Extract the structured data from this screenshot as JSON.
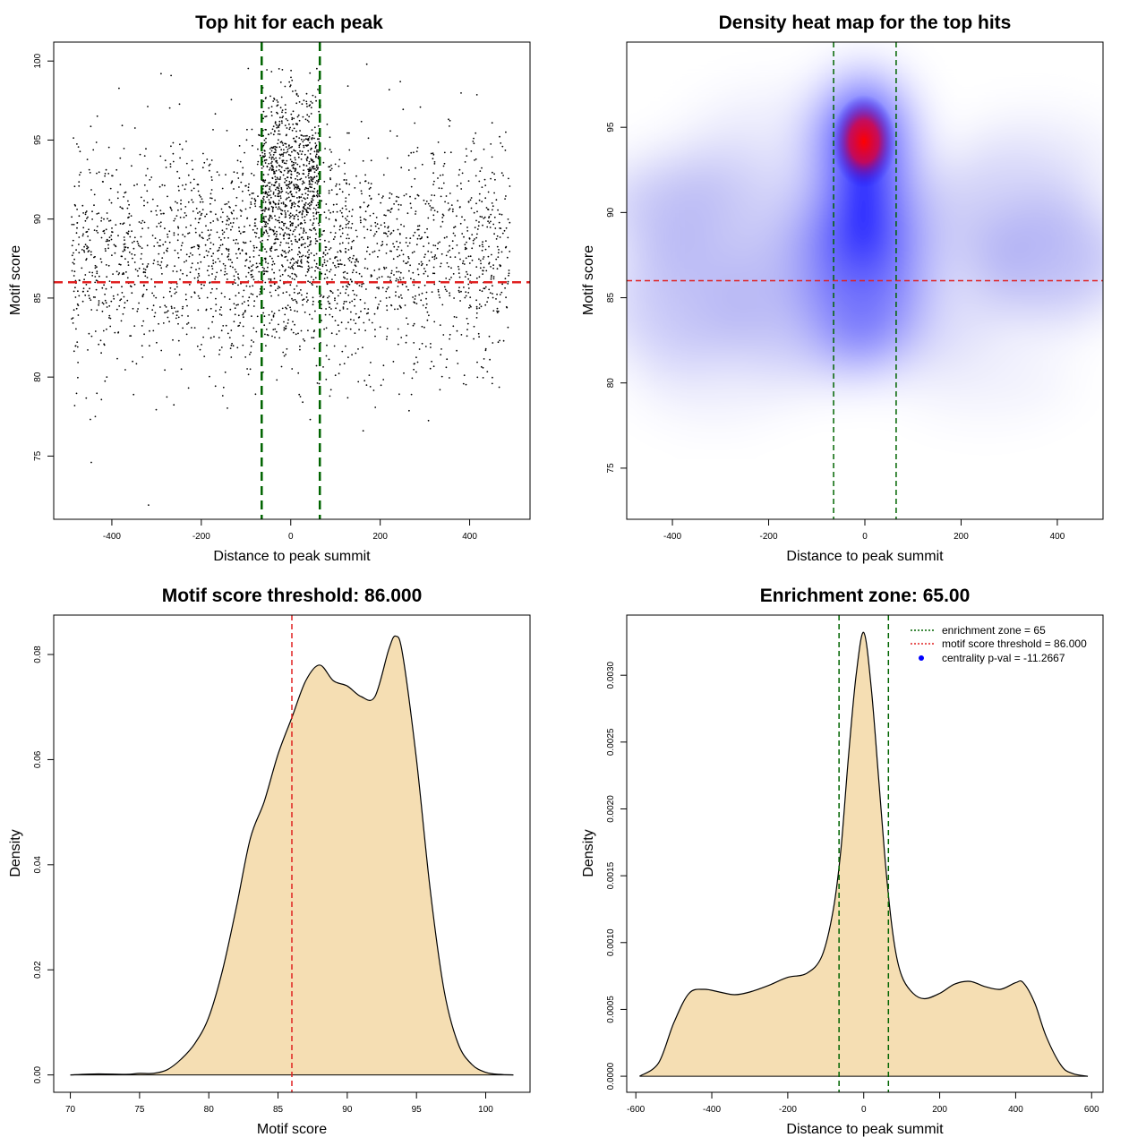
{
  "chart_data": [
    {
      "type": "scatter",
      "title": "Top hit for each peak",
      "xlabel": "Distance to peak summit",
      "ylabel": "Motif score",
      "xlim": [
        -530,
        535
      ],
      "ylim": [
        71,
        101.2
      ],
      "xticks": [
        -400,
        -200,
        0,
        200,
        400
      ],
      "yticks": [
        75,
        80,
        85,
        90,
        95,
        100
      ],
      "threshold_y": 86,
      "zone_x": [
        -65,
        65
      ],
      "colors": {
        "points": "#000000",
        "threshold": "#e02020",
        "zone": "#006400"
      },
      "point_groups": [
        {
          "x_range": [
            -490,
            490
          ],
          "y_mean": 87.5,
          "y_sd": 3.6,
          "count": 2200
        },
        {
          "x_range": [
            -65,
            65
          ],
          "y_mean": 93.0,
          "y_sd": 2.6,
          "count": 700
        },
        {
          "x_range": [
            -140,
            140
          ],
          "y_mean": 88.5,
          "y_sd": 3.0,
          "count": 300
        }
      ],
      "outliers": [
        {
          "x": -446,
          "y": 74.6
        },
        {
          "x": -318,
          "y": 71.9
        },
        {
          "x": -437,
          "y": 77.5
        },
        {
          "x": 162,
          "y": 76.6
        },
        {
          "x": -290,
          "y": 99.2
        },
        {
          "x": 170,
          "y": 99.8
        },
        {
          "x": 245,
          "y": 98.7
        }
      ]
    },
    {
      "type": "heatmap",
      "title": "Density heat map for the top hits",
      "xlabel": "Distance to peak summit",
      "ylabel": "Motif score",
      "xlim": [
        -495,
        495
      ],
      "ylim": [
        72,
        100
      ],
      "xticks": [
        -400,
        -200,
        0,
        200,
        400
      ],
      "yticks": [
        75,
        80,
        85,
        90,
        95
      ],
      "threshold_y": 86,
      "zone_x": [
        -65,
        65
      ],
      "colors": {
        "low": "#ffffff",
        "mid": "#0000ff",
        "high": "#ff0000",
        "threshold": "#e02020",
        "zone": "#006400"
      },
      "peak": {
        "x": 0,
        "y": 94
      }
    },
    {
      "type": "area",
      "title": "Motif score threshold: 86.000",
      "xlabel": "Motif score",
      "ylabel": "Density",
      "xlim": [
        68.8,
        103.2
      ],
      "ylim": [
        -0.0033,
        0.0875
      ],
      "xticks": [
        70,
        75,
        80,
        85,
        90,
        95,
        100
      ],
      "yticks": [
        0.0,
        0.02,
        0.04,
        0.06,
        0.08
      ],
      "ytick_labels": [
        "0.00",
        "0.02",
        "0.04",
        "0.06",
        "0.08"
      ],
      "threshold_x": 86,
      "colors": {
        "fill": "#f5deb3",
        "threshold": "#e02020"
      },
      "x": [
        70,
        72,
        74,
        75,
        76,
        77,
        78,
        79,
        80,
        81,
        82,
        83,
        84,
        85,
        86,
        87,
        88,
        89,
        90,
        91,
        92,
        93,
        93.5,
        94,
        95,
        96,
        97,
        98,
        99,
        100,
        101,
        102
      ],
      "y": [
        0,
        0.0002,
        0.0001,
        0.0003,
        0.0003,
        0.001,
        0.003,
        0.006,
        0.011,
        0.02,
        0.032,
        0.045,
        0.052,
        0.061,
        0.068,
        0.075,
        0.078,
        0.075,
        0.074,
        0.072,
        0.072,
        0.081,
        0.0835,
        0.08,
        0.06,
        0.035,
        0.016,
        0.006,
        0.002,
        0.0005,
        0.0001,
        0
      ]
    },
    {
      "type": "area",
      "title": "Enrichment zone: 65.00",
      "xlabel": "Distance to peak summit",
      "ylabel": "Density",
      "xlim": [
        -624,
        630
      ],
      "ylim": [
        -0.00012,
        0.00345
      ],
      "xticks": [
        -600,
        -400,
        -200,
        0,
        200,
        400,
        600
      ],
      "yticks": [
        0,
        0.0005,
        0.001,
        0.0015,
        0.002,
        0.0025,
        0.003
      ],
      "ytick_labels": [
        "0.0000",
        "0.0005",
        "0.0010",
        "0.0015",
        "0.0020",
        "0.0025",
        "0.0030"
      ],
      "zone_x": [
        -65,
        65
      ],
      "colors": {
        "fill": "#f5deb3",
        "zone": "#006400"
      },
      "x": [
        -590,
        -540,
        -500,
        -460,
        -420,
        -380,
        -340,
        -300,
        -250,
        -200,
        -150,
        -110,
        -80,
        -60,
        -40,
        -20,
        0,
        20,
        40,
        60,
        80,
        100,
        130,
        160,
        200,
        240,
        280,
        320,
        360,
        400,
        420,
        450,
        480,
        520,
        550,
        590
      ],
      "y": [
        0,
        0.0001,
        0.0004,
        0.00062,
        0.00065,
        0.00063,
        0.00061,
        0.00063,
        0.00068,
        0.00074,
        0.00077,
        0.0009,
        0.00125,
        0.0017,
        0.0024,
        0.003,
        0.00332,
        0.0029,
        0.0022,
        0.0015,
        0.001,
        0.00075,
        0.00062,
        0.00058,
        0.00062,
        0.00069,
        0.00071,
        0.00067,
        0.00065,
        0.0007,
        0.0007,
        0.00055,
        0.0003,
        8e-05,
        2e-05,
        0
      ],
      "legend": {
        "placement": "top-right",
        "entries": [
          {
            "label": "enrichment zone = 65",
            "color": "#006400",
            "style": "dotted"
          },
          {
            "label": "motif score threshold = 86.000",
            "color": "#e02020",
            "style": "dotted"
          },
          {
            "label": "centrality p-val = -11.2667",
            "color": "#0000ff",
            "style": "point"
          }
        ]
      }
    }
  ]
}
